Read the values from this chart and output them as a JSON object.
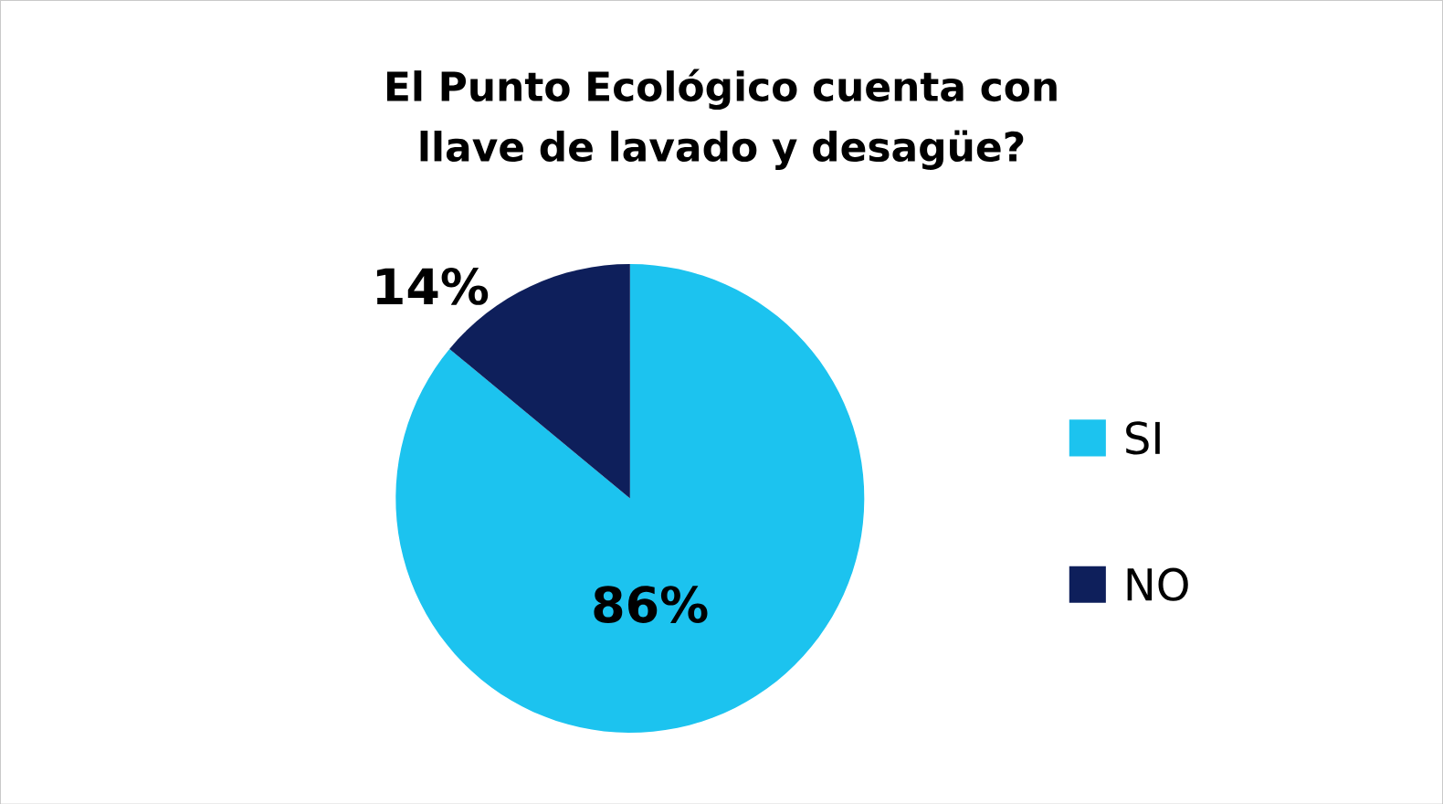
{
  "chart_data": {
    "type": "pie",
    "title": "El Punto Ecológico cuenta con llave de lavado y desagüe?",
    "categories": [
      "SI",
      "NO"
    ],
    "values": [
      86,
      14
    ],
    "value_labels": [
      "86%",
      "14%"
    ],
    "colors": [
      "#1cc3ef",
      "#0e1f5b"
    ],
    "legend": "right"
  }
}
